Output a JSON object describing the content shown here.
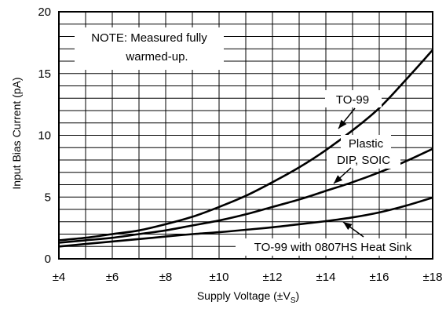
{
  "chart_data": {
    "type": "line",
    "title": "",
    "xlabel": "Supply Voltage (±V",
    "xlabel_sub": "S",
    "xlabel_close": ")",
    "ylabel": "Input Bias Current (pA)",
    "xlim": [
      4,
      18
    ],
    "ylim": [
      0,
      20
    ],
    "grid": true,
    "x_ticks": [
      {
        "value": 4,
        "label": "±4"
      },
      {
        "value": 6,
        "label": "±6"
      },
      {
        "value": 8,
        "label": "±8"
      },
      {
        "value": 10,
        "label": "±10"
      },
      {
        "value": 12,
        "label": "±12"
      },
      {
        "value": 14,
        "label": "±14"
      },
      {
        "value": 16,
        "label": "±16"
      },
      {
        "value": 18,
        "label": "±18"
      }
    ],
    "y_ticks": [
      {
        "value": 0,
        "label": "0"
      },
      {
        "value": 5,
        "label": "5"
      },
      {
        "value": 10,
        "label": "10"
      },
      {
        "value": 15,
        "label": "15"
      },
      {
        "value": 20,
        "label": "20"
      }
    ],
    "note": [
      "NOTE: Measured fully",
      "warmed-up."
    ],
    "series": [
      {
        "name": "TO-99",
        "x": [
          4,
          5,
          6,
          7,
          8,
          9,
          10,
          11,
          12,
          13,
          14,
          15,
          16,
          17,
          18
        ],
        "y": [
          1.5,
          1.7,
          2.0,
          2.3,
          2.8,
          3.4,
          4.2,
          5.1,
          6.2,
          7.4,
          8.8,
          10.4,
          12.2,
          14.5,
          16.9
        ]
      },
      {
        "name": "Plastic DIP, SOIC",
        "x": [
          4,
          5,
          6,
          7,
          8,
          9,
          10,
          11,
          12,
          13,
          14,
          15,
          16,
          17,
          18
        ],
        "y": [
          1.3,
          1.5,
          1.7,
          2.0,
          2.3,
          2.7,
          3.1,
          3.6,
          4.2,
          4.8,
          5.5,
          6.2,
          7.0,
          7.9,
          8.9
        ]
      },
      {
        "name": "TO-99 with 0807HS Heat Sink",
        "x": [
          4,
          5,
          6,
          7,
          8,
          9,
          10,
          11,
          12,
          13,
          14,
          15,
          16,
          17,
          18
        ],
        "y": [
          1.0,
          1.2,
          1.4,
          1.6,
          1.8,
          2.0,
          2.15,
          2.35,
          2.55,
          2.8,
          3.05,
          3.35,
          3.75,
          4.3,
          4.95
        ]
      }
    ],
    "callouts": [
      {
        "series": 0,
        "lines": [
          "TO-99"
        ]
      },
      {
        "series": 1,
        "lines": [
          "Plastic",
          "DIP, SOIC"
        ]
      },
      {
        "series": 2,
        "lines": [
          "TO-99 with 0807HS Heat Sink"
        ]
      }
    ]
  }
}
